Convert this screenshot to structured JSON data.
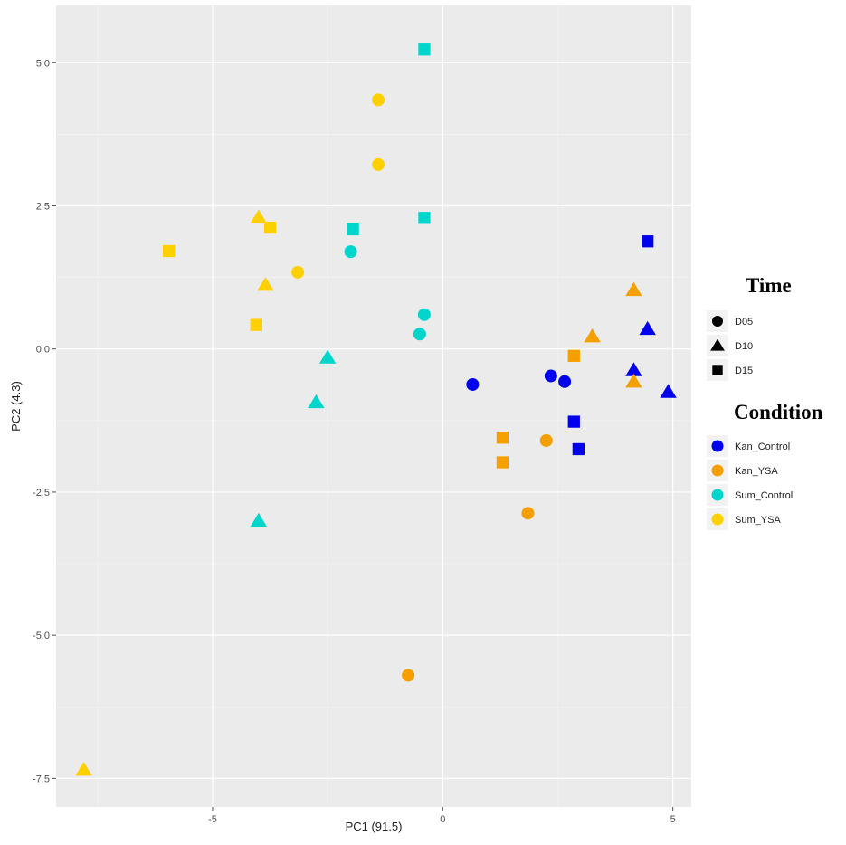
{
  "chart_data": {
    "type": "scatter",
    "xlabel": "PC1 (91.5)",
    "ylabel": "PC2 (4.3)",
    "xlim": [
      -8.4,
      5.4
    ],
    "ylim": [
      -8.0,
      6.0
    ],
    "x_ticks": [
      -5,
      0,
      5
    ],
    "x_tick_labels": [
      "-5",
      "0",
      "5"
    ],
    "y_ticks": [
      5.0,
      2.5,
      0.0,
      -2.5,
      -5.0,
      -7.5
    ],
    "y_tick_labels": [
      "5.0",
      "2.5",
      "0.0",
      "-2.5",
      "-5.0",
      "-7.5"
    ],
    "grid": true,
    "panel_background": "#ebebeb",
    "legend_position": "right",
    "legends": {
      "time": {
        "title": "Time",
        "entries": [
          {
            "label": "D05",
            "shape": "circle"
          },
          {
            "label": "D10",
            "shape": "triangle"
          },
          {
            "label": "D15",
            "shape": "square"
          }
        ]
      },
      "condition": {
        "title": "Condition",
        "entries": [
          {
            "label": "Kan_Control",
            "color": "#0000ee"
          },
          {
            "label": "Kan_YSA",
            "color": "#f5a000"
          },
          {
            "label": "Sum_Control",
            "color": "#00d6cc"
          },
          {
            "label": "Sum_YSA",
            "color": "#ffd000"
          }
        ]
      }
    },
    "points": [
      {
        "x": 0.65,
        "y": -0.62,
        "condition": "Kan_Control",
        "time": "D05"
      },
      {
        "x": 2.35,
        "y": -0.47,
        "condition": "Kan_Control",
        "time": "D05"
      },
      {
        "x": 2.65,
        "y": -0.57,
        "condition": "Kan_Control",
        "time": "D05"
      },
      {
        "x": 4.15,
        "y": -0.37,
        "condition": "Kan_Control",
        "time": "D10"
      },
      {
        "x": 4.45,
        "y": 0.35,
        "condition": "Kan_Control",
        "time": "D10"
      },
      {
        "x": 4.9,
        "y": -0.75,
        "condition": "Kan_Control",
        "time": "D10"
      },
      {
        "x": 4.45,
        "y": 1.88,
        "condition": "Kan_Control",
        "time": "D15"
      },
      {
        "x": 2.85,
        "y": -1.27,
        "condition": "Kan_Control",
        "time": "D15"
      },
      {
        "x": 2.95,
        "y": -1.75,
        "condition": "Kan_Control",
        "time": "D15"
      },
      {
        "x": 2.25,
        "y": -1.6,
        "condition": "Kan_YSA",
        "time": "D05"
      },
      {
        "x": 1.85,
        "y": -2.87,
        "condition": "Kan_YSA",
        "time": "D05"
      },
      {
        "x": -0.75,
        "y": -5.7,
        "condition": "Kan_YSA",
        "time": "D05"
      },
      {
        "x": 4.15,
        "y": 1.03,
        "condition": "Kan_YSA",
        "time": "D10"
      },
      {
        "x": 3.25,
        "y": 0.22,
        "condition": "Kan_YSA",
        "time": "D10"
      },
      {
        "x": 4.15,
        "y": -0.57,
        "condition": "Kan_YSA",
        "time": "D10"
      },
      {
        "x": 2.85,
        "y": -0.12,
        "condition": "Kan_YSA",
        "time": "D15"
      },
      {
        "x": 1.3,
        "y": -1.55,
        "condition": "Kan_YSA",
        "time": "D15"
      },
      {
        "x": 1.3,
        "y": -1.98,
        "condition": "Kan_YSA",
        "time": "D15"
      },
      {
        "x": -2.0,
        "y": 1.7,
        "condition": "Sum_Control",
        "time": "D05"
      },
      {
        "x": -0.4,
        "y": 0.6,
        "condition": "Sum_Control",
        "time": "D05"
      },
      {
        "x": -0.5,
        "y": 0.26,
        "condition": "Sum_Control",
        "time": "D05"
      },
      {
        "x": -2.5,
        "y": -0.15,
        "condition": "Sum_Control",
        "time": "D10"
      },
      {
        "x": -2.75,
        "y": -0.93,
        "condition": "Sum_Control",
        "time": "D10"
      },
      {
        "x": -4.0,
        "y": -3.0,
        "condition": "Sum_Control",
        "time": "D10"
      },
      {
        "x": -0.4,
        "y": 5.23,
        "condition": "Sum_Control",
        "time": "D15"
      },
      {
        "x": -1.95,
        "y": 2.09,
        "condition": "Sum_Control",
        "time": "D15"
      },
      {
        "x": -0.4,
        "y": 2.29,
        "condition": "Sum_Control",
        "time": "D15"
      },
      {
        "x": -1.4,
        "y": 4.35,
        "condition": "Sum_YSA",
        "time": "D05"
      },
      {
        "x": -1.4,
        "y": 3.22,
        "condition": "Sum_YSA",
        "time": "D05"
      },
      {
        "x": -3.15,
        "y": 1.34,
        "condition": "Sum_YSA",
        "time": "D05"
      },
      {
        "x": -4.0,
        "y": 2.3,
        "condition": "Sum_YSA",
        "time": "D10"
      },
      {
        "x": -3.85,
        "y": 1.12,
        "condition": "Sum_YSA",
        "time": "D10"
      },
      {
        "x": -7.8,
        "y": -7.35,
        "condition": "Sum_YSA",
        "time": "D10"
      },
      {
        "x": -5.95,
        "y": 1.71,
        "condition": "Sum_YSA",
        "time": "D15"
      },
      {
        "x": -3.75,
        "y": 2.12,
        "condition": "Sum_YSA",
        "time": "D15"
      },
      {
        "x": -4.05,
        "y": 0.42,
        "condition": "Sum_YSA",
        "time": "D15"
      }
    ]
  }
}
